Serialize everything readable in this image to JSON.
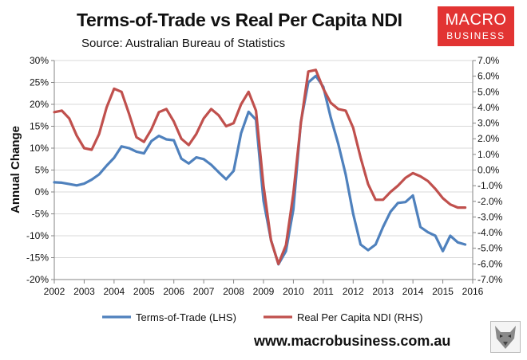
{
  "header": {
    "title": "Terms-of-Trade vs Real Per Capita NDI",
    "subtitle": "Source: Australian Bureau of Statistics"
  },
  "logo": {
    "line1": "MACRO",
    "line2": "BUSINESS"
  },
  "footer": {
    "website": "www.macrobusiness.com.au"
  },
  "colors": {
    "tot": "#4f81bd",
    "ndi": "#c0504d",
    "axis": "#868686",
    "logo_bg": "#e23433"
  },
  "chart_data": {
    "type": "line",
    "title": "Terms-of-Trade vs Real Per Capita NDI",
    "ylabel": "Annual Change",
    "xlim": [
      2002,
      2016
    ],
    "xticks": [
      2002,
      2003,
      2004,
      2005,
      2006,
      2007,
      2008,
      2009,
      2010,
      2011,
      2012,
      2013,
      2014,
      2015,
      2016
    ],
    "ylim_left": [
      -20,
      30
    ],
    "yticks_left": [
      "30%",
      "25%",
      "20%",
      "15%",
      "10%",
      "5%",
      "0%",
      "-5%",
      "-10%",
      "-15%",
      "-20%"
    ],
    "ylim_right": [
      -7,
      7
    ],
    "yticks_right": [
      "7.0%",
      "6.0%",
      "5.0%",
      "4.0%",
      "3.0%",
      "2.0%",
      "1.0%",
      "0.0%",
      "-1.0%",
      "-2.0%",
      "-3.0%",
      "-4.0%",
      "-5.0%",
      "-6.0%",
      "-7.0%"
    ],
    "series": [
      {
        "name": "Terms-of-Trade (LHS)",
        "axis": "left",
        "x": [
          2002.0,
          2002.25,
          2002.5,
          2002.75,
          2003.0,
          2003.25,
          2003.5,
          2003.75,
          2004.0,
          2004.25,
          2004.5,
          2004.75,
          2005.0,
          2005.25,
          2005.5,
          2005.75,
          2006.0,
          2006.25,
          2006.5,
          2006.75,
          2007.0,
          2007.25,
          2007.5,
          2007.75,
          2008.0,
          2008.25,
          2008.5,
          2008.75,
          2009.0,
          2009.25,
          2009.5,
          2009.75,
          2010.0,
          2010.25,
          2010.5,
          2010.75,
          2011.0,
          2011.25,
          2011.5,
          2011.75,
          2012.0,
          2012.25,
          2012.5,
          2012.75,
          2013.0,
          2013.25,
          2013.5,
          2013.75,
          2014.0,
          2014.25,
          2014.5,
          2014.75,
          2015.0,
          2015.25,
          2015.5,
          2015.75
        ],
        "values": [
          2.2,
          2.1,
          1.8,
          1.5,
          1.9,
          2.8,
          4.0,
          6.0,
          7.8,
          10.4,
          10.0,
          9.2,
          8.8,
          11.6,
          12.8,
          12.0,
          11.8,
          7.6,
          6.5,
          7.9,
          7.5,
          6.2,
          4.5,
          2.9,
          4.8,
          13.4,
          18.3,
          16.5,
          -2.0,
          -11.0,
          -16.5,
          -13.5,
          -4.0,
          16.0,
          25.0,
          26.5,
          24.0,
          17.0,
          11.0,
          4.0,
          -5.0,
          -12.0,
          -13.3,
          -12.0,
          -8.0,
          -4.5,
          -2.5,
          -2.3,
          -0.8,
          -8.0,
          -9.2,
          -10.0,
          -13.5,
          -10.0,
          -11.5,
          -12.0
        ]
      },
      {
        "name": "Real Per Capita NDI (RHS)",
        "axis": "right",
        "x": [
          2002.0,
          2002.25,
          2002.5,
          2002.75,
          2003.0,
          2003.25,
          2003.5,
          2003.75,
          2004.0,
          2004.25,
          2004.5,
          2004.75,
          2005.0,
          2005.25,
          2005.5,
          2005.75,
          2006.0,
          2006.25,
          2006.5,
          2006.75,
          2007.0,
          2007.25,
          2007.5,
          2007.75,
          2008.0,
          2008.25,
          2008.5,
          2008.75,
          2009.0,
          2009.25,
          2009.5,
          2009.75,
          2010.0,
          2010.25,
          2010.5,
          2010.75,
          2011.0,
          2011.25,
          2011.5,
          2011.75,
          2012.0,
          2012.25,
          2012.5,
          2012.75,
          2013.0,
          2013.25,
          2013.5,
          2013.75,
          2014.0,
          2014.25,
          2014.5,
          2014.75,
          2015.0,
          2015.25,
          2015.5,
          2015.75
        ],
        "values": [
          3.7,
          3.8,
          3.3,
          2.2,
          1.4,
          1.3,
          2.3,
          4.0,
          5.2,
          5.0,
          3.6,
          2.1,
          1.8,
          2.6,
          3.7,
          3.9,
          3.1,
          2.0,
          1.6,
          2.3,
          3.3,
          3.9,
          3.5,
          2.8,
          3.0,
          4.2,
          5.0,
          3.8,
          -1.0,
          -4.5,
          -6.0,
          -4.8,
          -1.5,
          3.0,
          6.3,
          6.4,
          5.2,
          4.3,
          3.9,
          3.8,
          2.7,
          0.8,
          -0.9,
          -1.9,
          -1.9,
          -1.4,
          -1.0,
          -0.5,
          -0.2,
          -0.4,
          -0.7,
          -1.2,
          -1.8,
          -2.2,
          -2.4,
          -2.4
        ]
      }
    ],
    "legend": "bottom"
  }
}
